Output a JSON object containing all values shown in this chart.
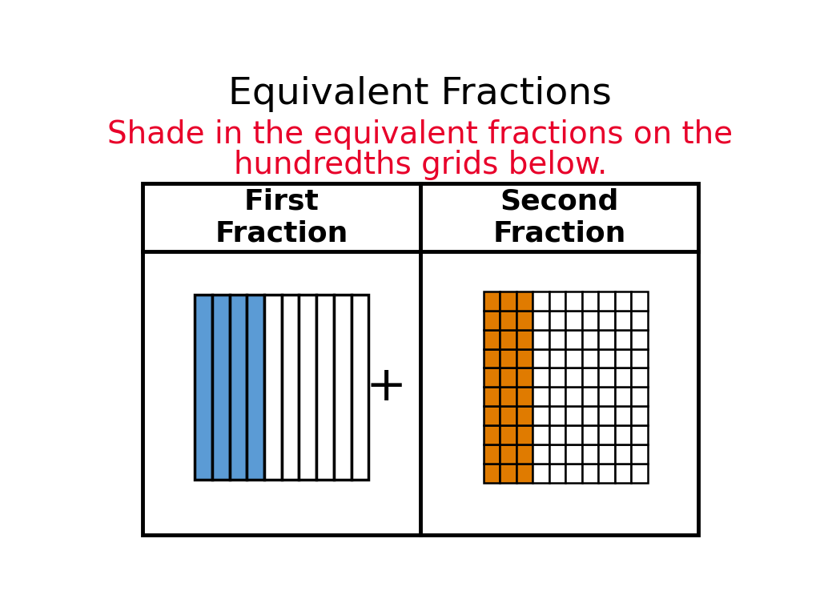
{
  "title": "Equivalent Fractions",
  "subtitle_line1": "Shade in the equivalent fractions on the",
  "subtitle_line2": "hundredths grids below.",
  "title_color": "#000000",
  "subtitle_color": "#e8002a",
  "header_left": "First\nFraction",
  "header_right": "Second\nFraction",
  "title_fontsize": 34,
  "subtitle_fontsize": 28,
  "header_fontsize": 26,
  "bg_color": "#ffffff",
  "first_grid_cols": 10,
  "first_shaded_cols": 4,
  "first_shade_color": "#5b9bd5",
  "second_grid_cols": 10,
  "second_grid_rows": 10,
  "second_shaded_cols": 3,
  "second_shade_color": "#e07b00",
  "plus_symbol": "+",
  "plus_fontsize": 44
}
